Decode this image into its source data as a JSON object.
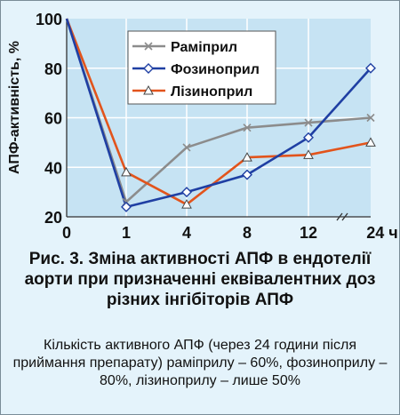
{
  "chart_data": {
    "type": "line",
    "ylabel": "АПФ-активність, %",
    "x_tick_labels": [
      "0",
      "1",
      "4",
      "8",
      "12",
      "24 ч"
    ],
    "ylim": [
      20,
      100
    ],
    "y_ticks": [
      20,
      40,
      60,
      80,
      100
    ],
    "grid": true,
    "axis_break": "between 12 and 24",
    "legend_position": "top-center",
    "series": [
      {
        "name": "Раміприл",
        "marker": "x",
        "color": "#8c8c8c",
        "values": [
          100,
          26,
          48,
          56,
          58,
          60
        ]
      },
      {
        "name": "Фозиноприл",
        "marker": "diamond",
        "color": "#1f3fa3",
        "values": [
          100,
          24,
          30,
          37,
          52,
          80
        ]
      },
      {
        "name": "Лізиноприл",
        "marker": "triangle",
        "color": "#e2541c",
        "values": [
          100,
          38,
          25,
          44,
          45,
          50
        ]
      }
    ]
  },
  "caption": {
    "title": "Рис. 3. Зміна активності АПФ в ендотелії аорти при призначенні еквівалентних доз різних інгібіторів АПФ",
    "note": "Кількість активного АПФ (через 24 години після приймання препарату) раміприлу – 60%, фозиноприлу – 80%, лізиноприлу – лише 50%"
  },
  "colors": {
    "background": "#e4f3fb",
    "plot_area": "#c6e3f3",
    "grid": "#ffffff"
  }
}
